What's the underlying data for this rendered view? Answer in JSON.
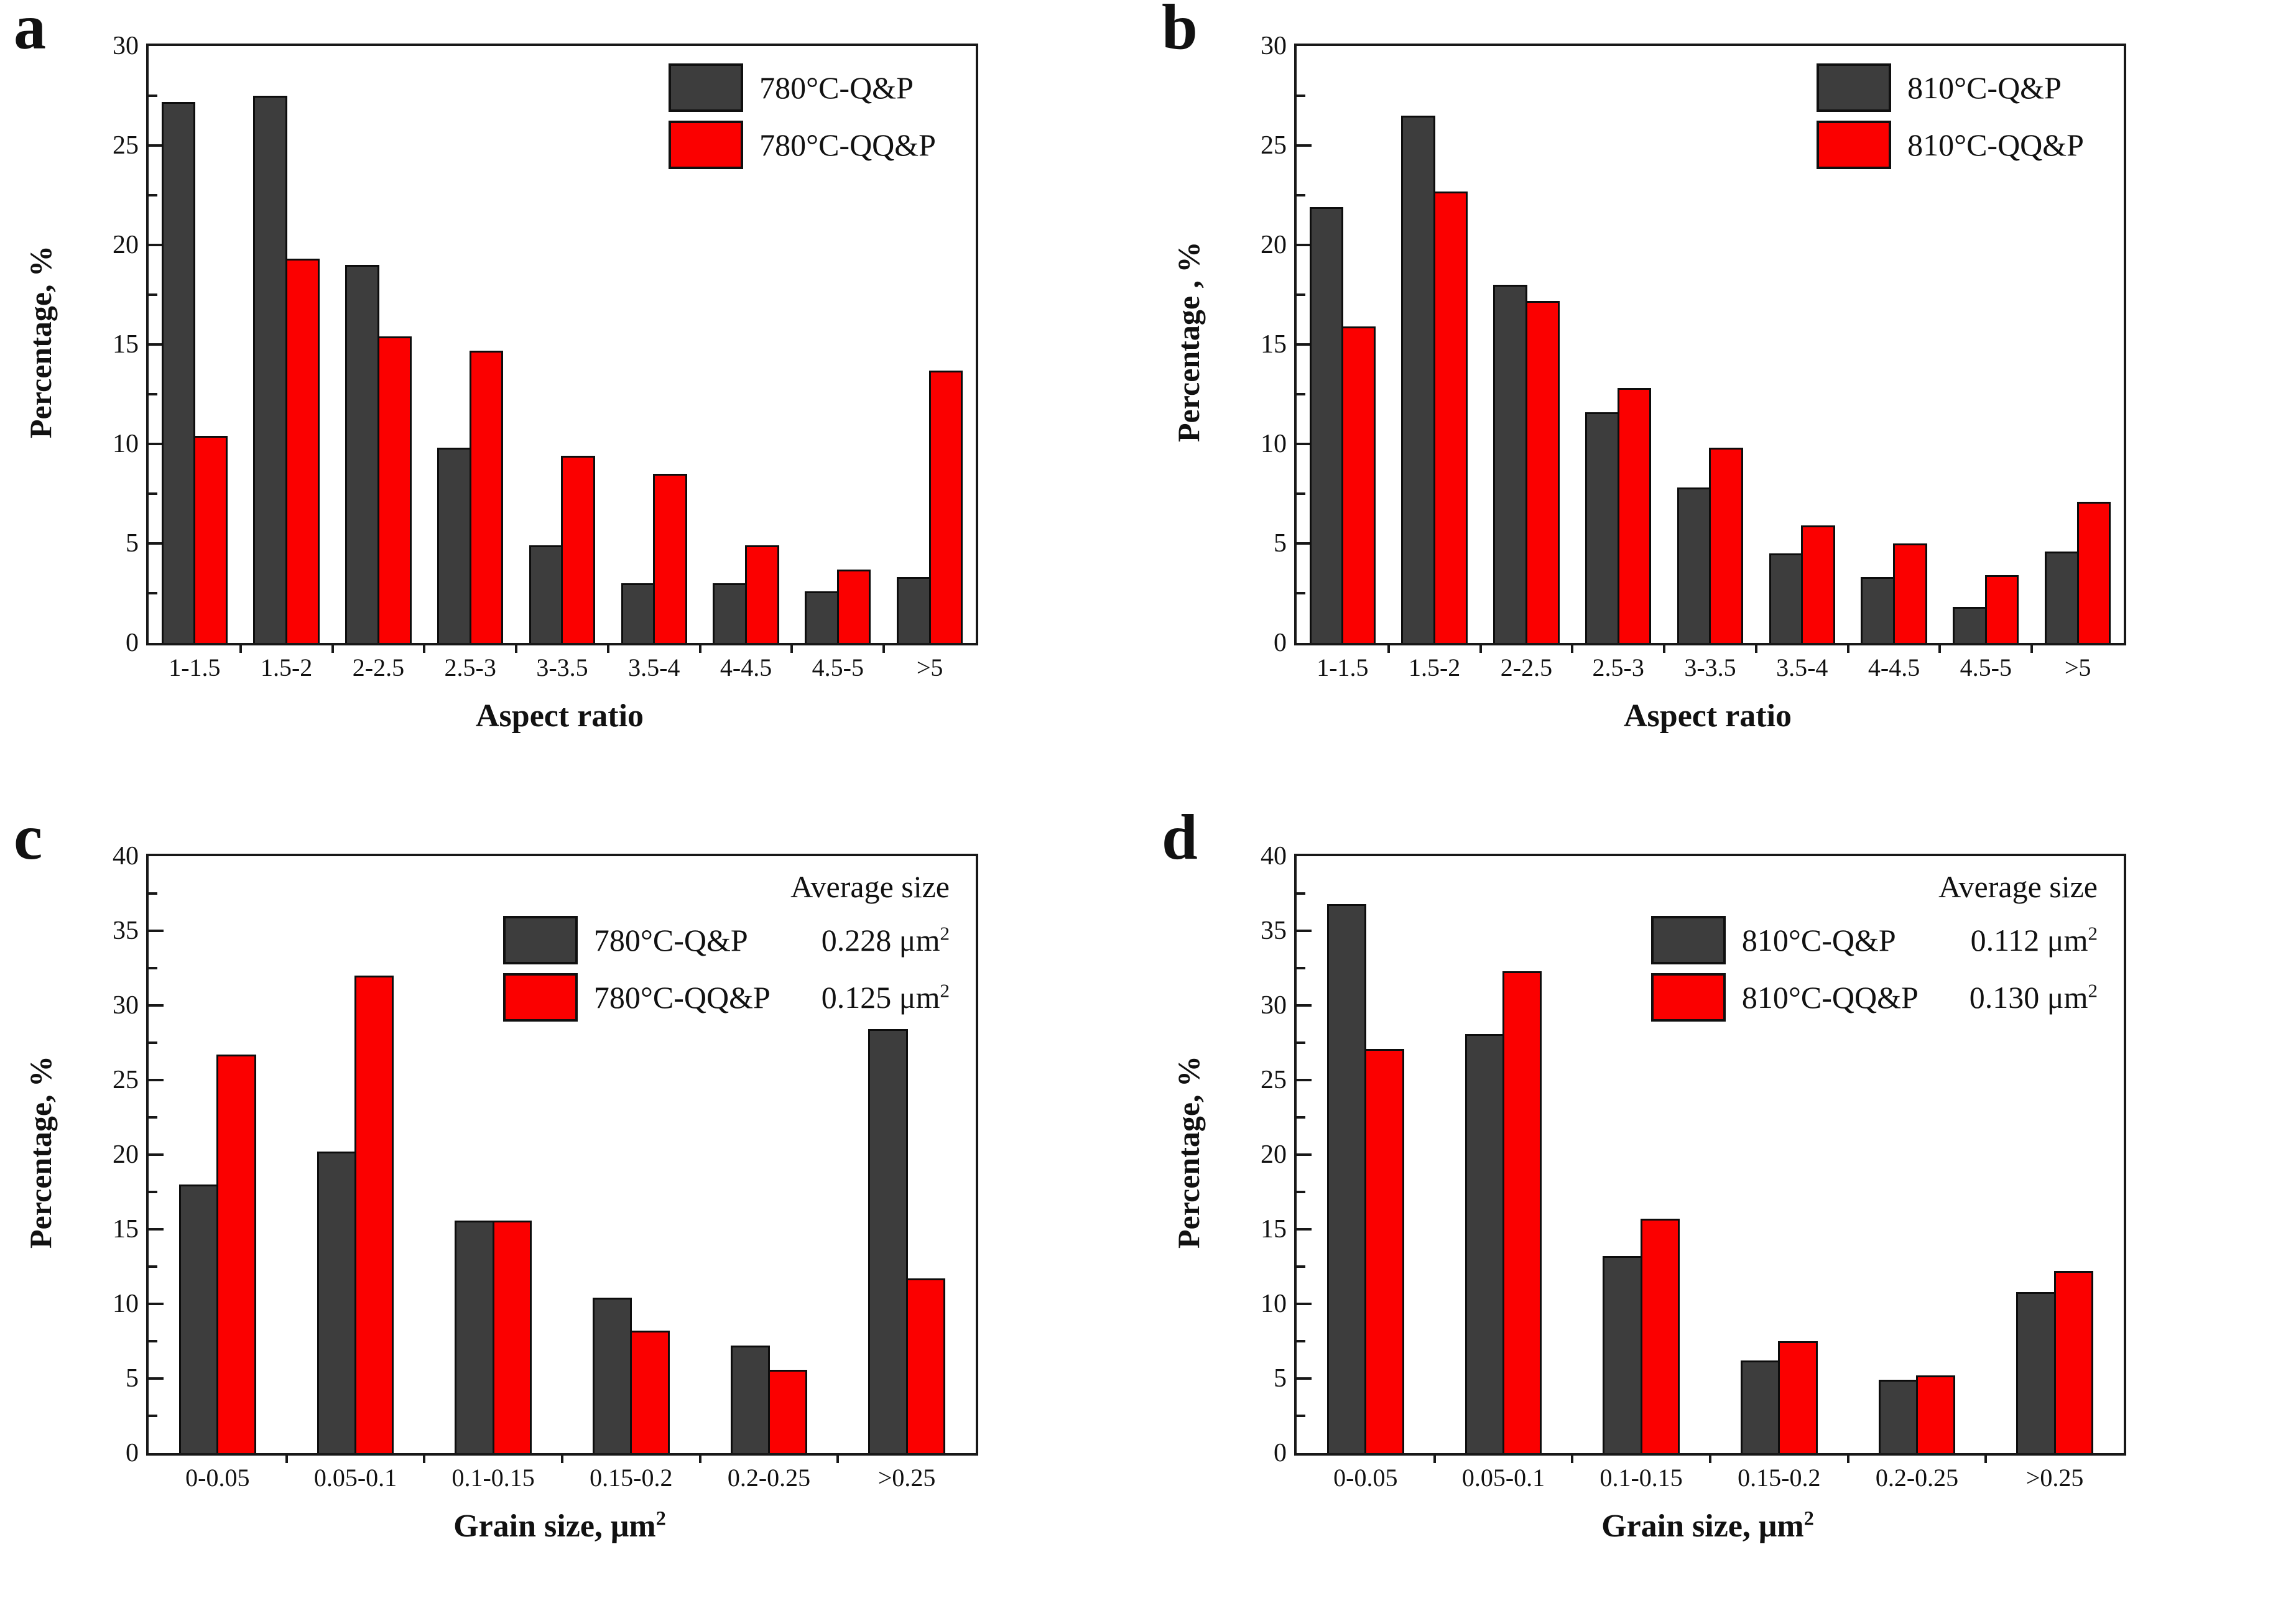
{
  "figure": {
    "background": "#ffffff",
    "series_colors": {
      "qp_dark": "#3d3d3d",
      "qqp_red": "#fb0000"
    },
    "axis_color": "#181818"
  },
  "chart_data": [
    {
      "id": "a",
      "panel_label": "a",
      "type": "bar",
      "xlabel": "Aspect ratio",
      "ylabel": "Percentage, %",
      "ylim": [
        0,
        30
      ],
      "ytick_step": 5,
      "ytick_minor": 2.5,
      "grid": false,
      "legend_position": "top-right",
      "categories": [
        "1-1.5",
        "1.5-2",
        "2-2.5",
        "2.5-3",
        "3-3.5",
        "3.5-4",
        "4-4.5",
        "4.5-5",
        ">5"
      ],
      "series": [
        {
          "name": "780°C-Q&P",
          "color": "#3d3d3d",
          "values": [
            27.2,
            27.5,
            19.0,
            9.8,
            4.9,
            3.0,
            3.0,
            2.6,
            3.3
          ]
        },
        {
          "name": "780°C-QQ&P",
          "color": "#fb0000",
          "values": [
            10.4,
            19.3,
            15.4,
            14.7,
            9.4,
            8.5,
            4.9,
            3.7,
            13.7
          ]
        }
      ]
    },
    {
      "id": "b",
      "panel_label": "b",
      "type": "bar",
      "xlabel": "Aspect ratio",
      "ylabel": "Percentage , %",
      "ylim": [
        0,
        30
      ],
      "ytick_step": 5,
      "ytick_minor": 2.5,
      "grid": false,
      "legend_position": "top-right",
      "categories": [
        "1-1.5",
        "1.5-2",
        "2-2.5",
        "2.5-3",
        "3-3.5",
        "3.5-4",
        "4-4.5",
        "4.5-5",
        ">5"
      ],
      "series": [
        {
          "name": "810°C-Q&P",
          "color": "#3d3d3d",
          "values": [
            21.9,
            26.5,
            18.0,
            11.6,
            7.8,
            4.5,
            3.3,
            1.8,
            4.6
          ]
        },
        {
          "name": "810°C-QQ&P",
          "color": "#fb0000",
          "values": [
            15.9,
            22.7,
            17.2,
            12.8,
            9.8,
            5.9,
            5.0,
            3.4,
            7.1
          ]
        }
      ]
    },
    {
      "id": "c",
      "panel_label": "c",
      "type": "bar",
      "xlabel": "Grain size, μm²",
      "ylabel": "Percentage, %",
      "ylim": [
        0,
        40
      ],
      "ytick_step": 5,
      "ytick_minor": 2.5,
      "grid": false,
      "legend_position": "top-right",
      "legend_header": "Average size",
      "categories": [
        "0-0.05",
        "0.05-0.1",
        "0.1-0.15",
        "0.15-0.2",
        "0.2-0.25",
        ">0.25"
      ],
      "series": [
        {
          "name": "780°C-Q&P",
          "color": "#3d3d3d",
          "avg_size": "0.228 μm²",
          "values": [
            18.0,
            20.2,
            15.6,
            10.4,
            7.2,
            28.4
          ]
        },
        {
          "name": "780°C-QQ&P",
          "color": "#fb0000",
          "avg_size": "0.125 μm²",
          "values": [
            26.7,
            32.0,
            15.6,
            8.2,
            5.6,
            11.7
          ]
        }
      ]
    },
    {
      "id": "d",
      "panel_label": "d",
      "type": "bar",
      "xlabel": "Grain size, μm²",
      "ylabel": "Percentage, %",
      "ylim": [
        0,
        40
      ],
      "ytick_step": 5,
      "ytick_minor": 2.5,
      "grid": false,
      "legend_position": "top-right",
      "legend_header": "Average size",
      "categories": [
        "0-0.05",
        "0.05-0.1",
        "0.1-0.15",
        "0.15-0.2",
        "0.2-0.25",
        ">0.25"
      ],
      "series": [
        {
          "name": "810°C-Q&P",
          "color": "#3d3d3d",
          "avg_size": "0.112 μm²",
          "values": [
            36.8,
            28.1,
            13.2,
            6.2,
            4.9,
            10.8
          ]
        },
        {
          "name": "810°C-QQ&P",
          "color": "#fb0000",
          "avg_size": "0.130 μm²",
          "values": [
            27.1,
            32.3,
            15.7,
            7.5,
            5.2,
            12.2
          ]
        }
      ]
    }
  ]
}
